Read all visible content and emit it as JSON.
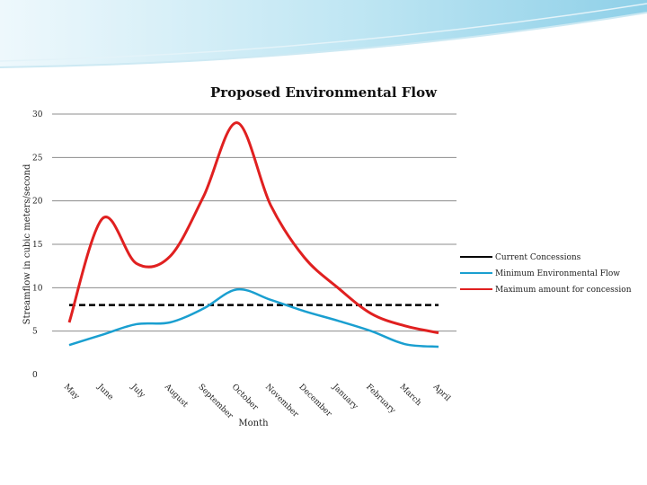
{
  "chart_data": {
    "type": "line",
    "title": "Proposed Environmental Flow",
    "xlabel": "Month",
    "ylabel": "Streamflow in cubic meters/second",
    "categories": [
      "May",
      "June",
      "July",
      "August",
      "September",
      "October",
      "November",
      "December",
      "January",
      "February",
      "March",
      "April"
    ],
    "ylim": [
      0,
      30
    ],
    "yticks": [
      0,
      5,
      10,
      15,
      20,
      25,
      30
    ],
    "grid": true,
    "legend_position": "right",
    "series": [
      {
        "name": "Current Concessions",
        "color": "#000000",
        "style": "dashed",
        "values": [
          8,
          8,
          8,
          8,
          8,
          8,
          8,
          8,
          8,
          8,
          8,
          8
        ]
      },
      {
        "name": "Minimum Environmental Flow",
        "color": "#1a9fd0",
        "style": "solid",
        "values": [
          3.4,
          4.6,
          5.8,
          6.0,
          7.6,
          9.8,
          8.6,
          7.3,
          6.2,
          5.0,
          3.5,
          3.2
        ]
      },
      {
        "name": "Maximum amount for concession",
        "color": "#e02020",
        "style": "solid",
        "values": [
          6.0,
          18.0,
          12.8,
          13.6,
          20.5,
          29.0,
          19.5,
          13.5,
          10.0,
          7.0,
          5.6,
          4.8
        ]
      }
    ]
  }
}
